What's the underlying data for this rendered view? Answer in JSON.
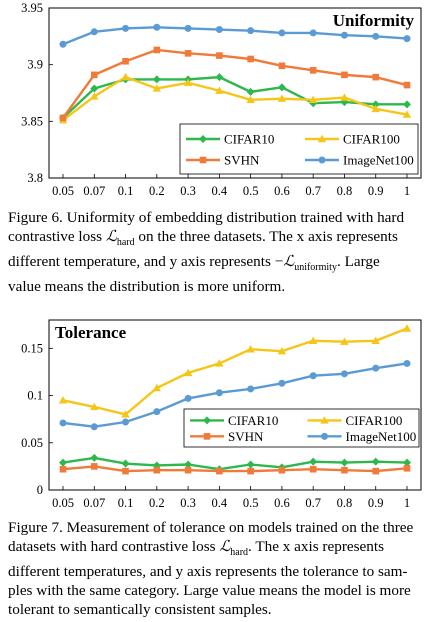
{
  "chart_data": [
    {
      "id": "uniformity",
      "type": "line",
      "title": "Uniformity",
      "title_position": "top-right",
      "xlabel": "",
      "ylabel": "",
      "categories": [
        "0.05",
        "0.07",
        "0.1",
        "0.2",
        "0.3",
        "0.4",
        "0.5",
        "0.6",
        "0.7",
        "0.8",
        "0.9",
        "1"
      ],
      "ylim": [
        3.8,
        3.95
      ],
      "yticks": [
        3.8,
        3.85,
        3.9,
        3.95
      ],
      "ytick_labels": [
        "3.8",
        "3.85",
        "3.9",
        "3.95"
      ],
      "grid": false,
      "legend_position": "bottom-right",
      "series": [
        {
          "name": "CIFAR10",
          "color": "#2db84d",
          "marker": "diamond",
          "values": [
            3.853,
            3.879,
            3.887,
            3.887,
            3.887,
            3.889,
            3.876,
            3.88,
            3.866,
            3.867,
            3.865,
            3.865
          ]
        },
        {
          "name": "CIFAR100",
          "color": "#f5c518",
          "marker": "triangle",
          "values": [
            3.851,
            3.872,
            3.889,
            3.879,
            3.884,
            3.877,
            3.869,
            3.87,
            3.869,
            3.871,
            3.861,
            3.856
          ]
        },
        {
          "name": "SVHN",
          "color": "#f07a3a",
          "marker": "square",
          "values": [
            3.853,
            3.891,
            3.903,
            3.913,
            3.91,
            3.908,
            3.905,
            3.899,
            3.895,
            3.891,
            3.889,
            3.882
          ]
        },
        {
          "name": "ImageNet100",
          "color": "#5b9bd5",
          "marker": "circle",
          "values": [
            3.918,
            3.929,
            3.932,
            3.933,
            3.932,
            3.931,
            3.93,
            3.928,
            3.928,
            3.926,
            3.925,
            3.923
          ]
        }
      ]
    },
    {
      "id": "tolerance",
      "type": "line",
      "title": "Tolerance",
      "title_position": "top-left",
      "xlabel": "",
      "ylabel": "",
      "categories": [
        "0.05",
        "0.07",
        "0.1",
        "0.2",
        "0.3",
        "0.4",
        "0.5",
        "0.6",
        "0.7",
        "0.8",
        "0.9",
        "1"
      ],
      "ylim": [
        0,
        0.18
      ],
      "yticks": [
        0,
        0.05,
        0.1,
        0.15
      ],
      "ytick_labels": [
        "0",
        "0.05",
        "0.1",
        "0.15"
      ],
      "grid": false,
      "legend_position": "lower-right",
      "series": [
        {
          "name": "CIFAR10",
          "color": "#2db84d",
          "marker": "diamond",
          "values": [
            0.029,
            0.034,
            0.028,
            0.026,
            0.027,
            0.022,
            0.027,
            0.024,
            0.03,
            0.029,
            0.03,
            0.029
          ]
        },
        {
          "name": "CIFAR100",
          "color": "#f5c518",
          "marker": "triangle",
          "values": [
            0.095,
            0.088,
            0.08,
            0.108,
            0.124,
            0.134,
            0.149,
            0.147,
            0.158,
            0.157,
            0.158,
            0.171
          ]
        },
        {
          "name": "SVHN",
          "color": "#f07a3a",
          "marker": "square",
          "values": [
            0.022,
            0.025,
            0.02,
            0.021,
            0.021,
            0.02,
            0.02,
            0.021,
            0.022,
            0.021,
            0.02,
            0.023
          ]
        },
        {
          "name": "ImageNet100",
          "color": "#5b9bd5",
          "marker": "circle",
          "values": [
            0.071,
            0.067,
            0.072,
            0.083,
            0.097,
            0.103,
            0.107,
            0.113,
            0.121,
            0.123,
            0.129,
            0.134
          ]
        }
      ]
    }
  ],
  "captions": {
    "figure6": {
      "line1": "Figure 6. Uniformity of embedding distribution trained with hard",
      "line2_a": "contrastive loss ",
      "line2_math": "ℒ",
      "line2_sub": "hard",
      "line2_b": " on the three datasets. The x axis represents",
      "line3_a": "different temperature, and y axis represents −",
      "line3_math": "ℒ",
      "line3_sub": "uniformity",
      "line3_b": ". Large",
      "line4": "value means the distribution is more uniform."
    },
    "figure7": {
      "line1": "Figure 7. Measurement of tolerance on models trained on the three",
      "line2_a": "datasets with hard contrastive loss ",
      "line2_math": "ℒ",
      "line2_sub": "hard",
      "line2_b": ". The x axis represents",
      "line3": "different temperatures, and y axis represents the tolerance to sam-",
      "line4": "ples with the same category. Large value means the model is more",
      "line5": "tolerant to semantically consistent samples."
    }
  }
}
